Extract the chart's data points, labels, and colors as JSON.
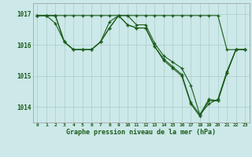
{
  "title": "Graphe pression niveau de la mer (hPa)",
  "bg_color": "#cce8e8",
  "grid_color": "#aacccc",
  "line_color": "#1a5c1a",
  "xlim": [
    -0.5,
    23.5
  ],
  "ylim": [
    1013.5,
    1017.35
  ],
  "yticks": [
    1014,
    1015,
    1016,
    1017
  ],
  "xticks": [
    0,
    1,
    2,
    3,
    4,
    5,
    6,
    7,
    8,
    9,
    10,
    11,
    12,
    13,
    14,
    15,
    16,
    17,
    18,
    19,
    20,
    21,
    22,
    23
  ],
  "series": [
    [
      1016.95,
      1016.95,
      1016.95,
      1016.95,
      1016.95,
      1016.95,
      1016.95,
      1016.95,
      1016.95,
      1016.95,
      1016.95,
      1016.95,
      1016.95,
      1016.95,
      1016.95,
      1016.95,
      1016.95,
      1016.95,
      1016.95,
      1016.95,
      1016.95,
      1015.85,
      1015.85,
      1015.85
    ],
    [
      1016.95,
      1016.95,
      1016.7,
      1016.1,
      1015.85,
      1015.85,
      1015.85,
      1016.1,
      1016.75,
      1016.95,
      1016.95,
      1016.65,
      1016.65,
      1016.05,
      1015.65,
      1015.45,
      1015.25,
      1014.7,
      1013.75,
      1014.1,
      1014.25,
      1015.15,
      1015.85,
      1015.85
    ],
    [
      1016.95,
      1016.95,
      1016.95,
      1016.1,
      1015.85,
      1015.85,
      1015.85,
      1016.1,
      1016.55,
      1016.95,
      1016.65,
      1016.55,
      1016.55,
      1015.95,
      1015.5,
      1015.25,
      1015.0,
      1014.1,
      1013.7,
      1014.2,
      1014.2,
      1015.1,
      1015.85,
      1015.85
    ],
    [
      1016.95,
      1016.95,
      1016.95,
      1016.1,
      1015.85,
      1015.85,
      1015.85,
      1016.1,
      1016.55,
      1016.95,
      1016.65,
      1016.55,
      1016.55,
      1015.95,
      1015.55,
      1015.3,
      1015.05,
      1014.15,
      1013.75,
      1014.25,
      1014.2,
      1015.1,
      1015.85,
      1015.85
    ]
  ]
}
